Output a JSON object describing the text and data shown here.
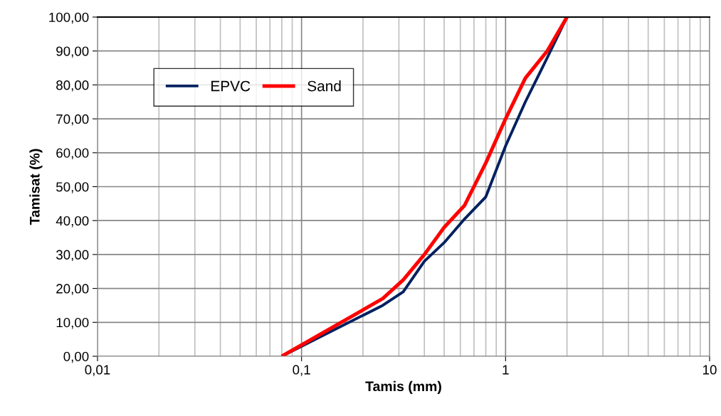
{
  "chart_data": {
    "type": "line",
    "xlabel": "Tamis (mm)",
    "ylabel": "Tamisat (%)",
    "log": "x",
    "x": [
      0.08,
      0.25,
      0.315,
      0.4,
      0.5,
      0.63,
      0.8,
      1,
      1.25,
      1.6,
      2
    ],
    "series": [
      {
        "name": "EPVC",
        "color": "#002060",
        "values": [
          0,
          15,
          19,
          28,
          33.5,
          40.5,
          47,
          62,
          75,
          88,
          100
        ]
      },
      {
        "name": "Sand",
        "color": "#ff0000",
        "values": [
          0,
          17,
          22.5,
          30,
          38,
          44.5,
          57,
          70,
          82,
          90,
          100
        ]
      }
    ],
    "xlim": [
      0.01,
      10
    ],
    "xticks": [
      {
        "value": 0.01,
        "label": "0,01"
      },
      {
        "value": 0.1,
        "label": "0,1"
      },
      {
        "value": 1,
        "label": "1"
      },
      {
        "value": 10,
        "label": "10"
      }
    ],
    "ylim": [
      0,
      100
    ],
    "yticks": [
      {
        "value": 0,
        "label": "0,00"
      },
      {
        "value": 10,
        "label": "10,00"
      },
      {
        "value": 20,
        "label": "20,00"
      },
      {
        "value": 30,
        "label": "30,00"
      },
      {
        "value": 40,
        "label": "40,00"
      },
      {
        "value": 50,
        "label": "50,00"
      },
      {
        "value": 60,
        "label": "60,00"
      },
      {
        "value": 70,
        "label": "70,00"
      },
      {
        "value": 80,
        "label": "80,00"
      },
      {
        "value": 90,
        "label": "90,00"
      },
      {
        "value": 100,
        "label": "100,00"
      }
    ],
    "grid": true,
    "legend": "top left",
    "marker": "none",
    "line_style": "solid"
  }
}
